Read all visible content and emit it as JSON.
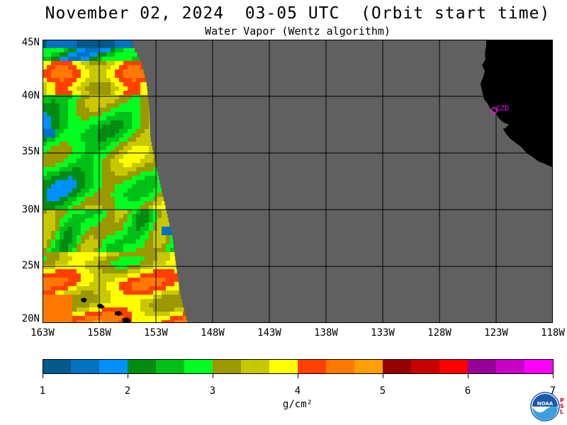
{
  "header": {
    "title": "November 02, 2024  03-05 UTC  (Orbit start time)",
    "subtitle": "Water Vapor (Wentz algorithm)"
  },
  "map": {
    "lat_labels": [
      "45N",
      "40N",
      "35N",
      "30N",
      "25N",
      "20N"
    ],
    "lon_labels": [
      "163W",
      "158W",
      "153W",
      "148W",
      "143W",
      "138W",
      "133W",
      "128W",
      "123W",
      "118W"
    ],
    "lat_range": [
      20,
      45
    ],
    "lon_range": [
      -163,
      -118
    ],
    "station_label": "CZD",
    "colors": {
      "no_data": "#606060",
      "land": "#000000",
      "grid": "#000000",
      "station": "#ff00ff"
    }
  },
  "colorbar": {
    "tick_labels": [
      "1",
      "2",
      "3",
      "4",
      "5",
      "6",
      "7"
    ],
    "units": "g/cm²",
    "colors": [
      "#005a8a",
      "#0072c0",
      "#0090ff",
      "#008c10",
      "#00c018",
      "#00ff20",
      "#9c9800",
      "#c8c800",
      "#ffff00",
      "#ff4000",
      "#ff7800",
      "#ffa000",
      "#960000",
      "#c80000",
      "#ff0000",
      "#960096",
      "#c800c8",
      "#ff00ff"
    ]
  },
  "logo": {
    "text": "NOAA",
    "side_letters": [
      "P",
      "S",
      "L"
    ]
  }
}
